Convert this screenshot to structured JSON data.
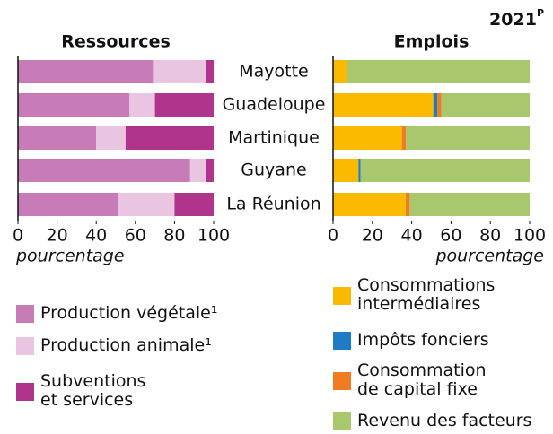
{
  "annotation": "2021",
  "annotation_sup": "P",
  "chart_data": [
    {
      "type": "stacked-barh",
      "title": "Ressources",
      "xlabel": "pourcentage",
      "categories": [
        "Mayotte",
        "Guadeloupe",
        "Martinique",
        "Guyane",
        "La Réunion"
      ],
      "xlim": [
        0,
        100
      ],
      "xticks": [
        0,
        20,
        40,
        60,
        80,
        100
      ],
      "series": [
        {
          "name": "Production végétale¹",
          "color": "#c77bb7",
          "values": [
            69,
            57,
            40,
            88,
            51
          ]
        },
        {
          "name": "Production animale¹",
          "color": "#e9c5e2",
          "values": [
            27,
            13,
            15,
            8,
            29
          ]
        },
        {
          "name": "Subventions\net services",
          "color": "#b0348c",
          "values": [
            4,
            30,
            45,
            4,
            20
          ]
        }
      ]
    },
    {
      "type": "stacked-barh",
      "title": "Emplois",
      "xlabel": "pourcentage",
      "categories": [
        "Mayotte",
        "Guadeloupe",
        "Martinique",
        "Guyane",
        "La Réunion"
      ],
      "xlim": [
        0,
        100
      ],
      "xticks": [
        0,
        20,
        40,
        60,
        80,
        100
      ],
      "series": [
        {
          "name": "Consommations\nintermédiaires",
          "color": "#fbb900",
          "values": [
            7,
            51,
            35,
            13,
            37
          ]
        },
        {
          "name": "Impôts fonciers",
          "color": "#1f7bc3",
          "values": [
            0,
            2,
            0,
            1,
            0
          ]
        },
        {
          "name": "Consommation\nde capital fixe",
          "color": "#ef7b22",
          "values": [
            0,
            2,
            2,
            0,
            2
          ]
        },
        {
          "name": "Revenu des facteurs",
          "color": "#a9c86d",
          "values": [
            93,
            45,
            63,
            86,
            61
          ]
        }
      ]
    }
  ]
}
